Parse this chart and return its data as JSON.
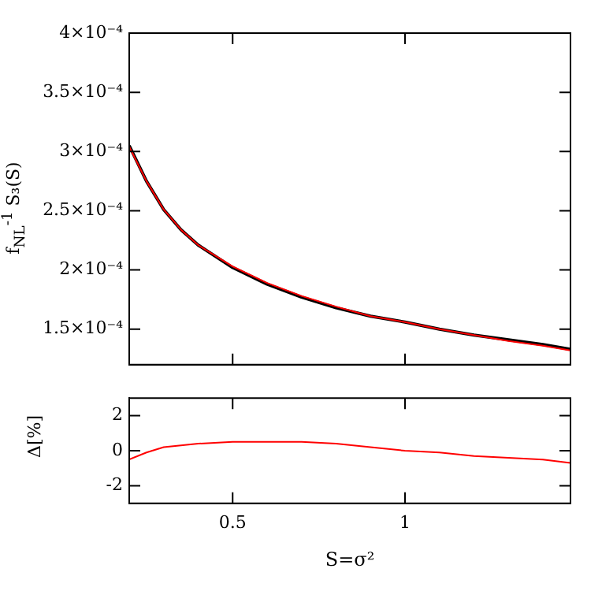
{
  "chart_data": [
    {
      "type": "line",
      "ylabel": "f$_{NL}$$^{-1}$ S₃(S)",
      "x": [
        0.2,
        0.25,
        0.3,
        0.35,
        0.4,
        0.5,
        0.6,
        0.7,
        0.8,
        0.9,
        1.0,
        1.1,
        1.2,
        1.3,
        1.4,
        1.48
      ],
      "series": [
        {
          "color": "#000000",
          "values": [
            0.000305,
            0.000275,
            0.000251,
            0.000234,
            0.000221,
            0.000202,
            0.000188,
            0.000177,
            0.000168,
            0.000161,
            0.000156,
            0.00015,
            0.000145,
            0.000141,
            0.000137,
            0.000133
          ]
        },
        {
          "color": "#ff0000",
          "values": [
            0.000304,
            0.000275,
            0.000251,
            0.000234,
            0.000221,
            0.000203,
            0.000189,
            0.000178,
            0.000169,
            0.000161,
            0.000156,
            0.00015,
            0.000145,
            0.00014,
            0.000136,
            0.000132
          ]
        }
      ],
      "xlim": [
        0.2,
        1.48
      ],
      "xticks": [
        {
          "value": 0.5,
          "label": null
        },
        {
          "value": 1,
          "label": null
        }
      ],
      "ylim": [
        0.00012,
        0.0004
      ],
      "yticks": [
        {
          "value": 0.00015,
          "label": "1.5×10⁻⁴"
        },
        {
          "value": 0.0002,
          "label": "2×10⁻⁴"
        },
        {
          "value": 0.00025,
          "label": "2.5×10⁻⁴"
        },
        {
          "value": 0.0003,
          "label": "3×10⁻⁴"
        },
        {
          "value": 0.00035,
          "label": "3.5×10⁻⁴"
        },
        {
          "value": 0.0004,
          "label": "4×10⁻⁴"
        }
      ],
      "tick_labels": "y",
      "grid": false,
      "legend": false
    },
    {
      "type": "line",
      "xlabel": "S=σ²",
      "ylabel": "Δ[%]",
      "x": [
        0.2,
        0.25,
        0.3,
        0.35,
        0.4,
        0.5,
        0.6,
        0.7,
        0.8,
        0.9,
        1.0,
        1.1,
        1.2,
        1.3,
        1.4,
        1.48
      ],
      "series": [
        {
          "color": "#ff0000",
          "values": [
            -0.5,
            -0.1,
            0.2,
            0.3,
            0.4,
            0.5,
            0.5,
            0.5,
            0.4,
            0.2,
            0.0,
            -0.1,
            -0.3,
            -0.4,
            -0.5,
            -0.7
          ]
        }
      ],
      "xlim": [
        0.2,
        1.48
      ],
      "xticks": [
        0.5,
        1
      ],
      "ylim": [
        -3,
        3
      ],
      "yticks": [
        -2,
        0,
        2
      ],
      "grid": false,
      "legend": false
    }
  ]
}
